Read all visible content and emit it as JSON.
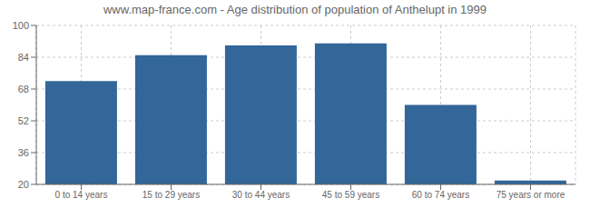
{
  "chart_data": {
    "type": "bar",
    "title": "www.map-france.com - Age distribution of population of Anthelupt in 1999",
    "categories": [
      "0 to 14 years",
      "15 to 29 years",
      "30 to 44 years",
      "45 to 59 years",
      "60 to 74 years",
      "75 years or more"
    ],
    "values": [
      72,
      85,
      90,
      91,
      60,
      22
    ],
    "color": "#336699",
    "ylim": [
      20,
      100
    ],
    "yticks": [
      20,
      36,
      52,
      68,
      84,
      100
    ],
    "grid": true
  }
}
